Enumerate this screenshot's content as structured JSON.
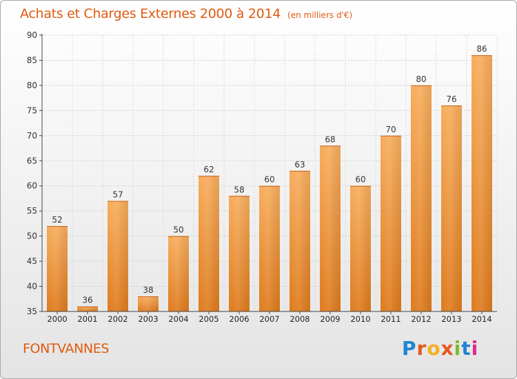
{
  "header": {
    "title": "Achats et Charges Externes 2000 à 2014",
    "subtitle": "(en milliers d'€)"
  },
  "footer": {
    "commune": "FONTVANNES",
    "logo_text": "Proxiti",
    "logo_colors": [
      "#1f86d1",
      "#e8581c",
      "#f2b01e",
      "#e8581c",
      "#7cbb2e",
      "#1f86d1",
      "#e0288b"
    ]
  },
  "colors": {
    "bar_light": "#f7ad5c",
    "bar_dark": "#de7a1c",
    "accent": "#e05a10"
  },
  "chart_data": {
    "type": "bar",
    "title": "Achats et Charges Externes 2000 à 2014",
    "subtitle": "(en milliers d'€)",
    "categories": [
      "2000",
      "2001",
      "2002",
      "2003",
      "2004",
      "2005",
      "2006",
      "2007",
      "2008",
      "2009",
      "2010",
      "2011",
      "2012",
      "2013",
      "2014"
    ],
    "values": [
      52,
      36,
      57,
      38,
      50,
      62,
      58,
      60,
      63,
      68,
      60,
      70,
      80,
      76,
      86
    ],
    "ylim": [
      35,
      90
    ],
    "yticks": [
      35,
      40,
      45,
      50,
      55,
      60,
      65,
      70,
      75,
      80,
      85,
      90
    ],
    "grid": true,
    "data_labels": true
  }
}
